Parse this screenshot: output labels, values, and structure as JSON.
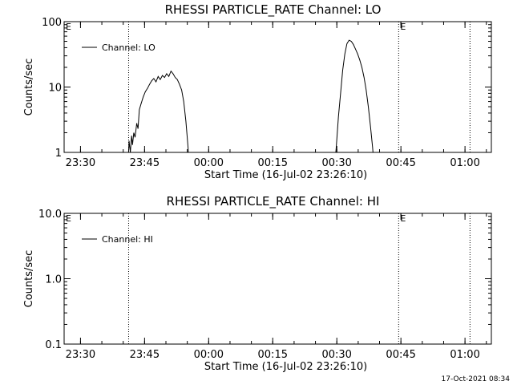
{
  "chart_data": [
    {
      "type": "line",
      "title": "RHESSI PARTICLE_RATE Channel: LO",
      "xlabel": "Start Time (16-Jul-02 23:26:10)",
      "ylabel": "Counts/sec",
      "y_scale": "log",
      "ylim": [
        1,
        100
      ],
      "y_ticks": [
        "1",
        "10",
        "100"
      ],
      "x_tick_labels": [
        "23:30",
        "23:45",
        "00:00",
        "00:15",
        "00:30",
        "00:45",
        "01:00"
      ],
      "x_ticks_min": [
        3.83,
        18.83,
        33.83,
        48.83,
        63.83,
        78.83,
        93.83
      ],
      "xlim_min": [
        0,
        100
      ],
      "legend": {
        "label": "Channel: LO",
        "position": "top-left"
      },
      "grid": false,
      "markers": [
        {
          "label": "E",
          "x_min": 0,
          "line": "solid"
        },
        {
          "label": "",
          "x_min": 15.1,
          "line": "dotted"
        },
        {
          "label": "E",
          "x_min": 78.3,
          "line": "dotted"
        },
        {
          "label": "",
          "x_min": 95.0,
          "line": "dotted"
        }
      ],
      "series": [
        {
          "name": "Channel: LO",
          "segments": [
            [
              [
                15.0,
                0.7
              ],
              [
                15.2,
                1.5
              ],
              [
                15.5,
                1.0
              ],
              [
                15.8,
                1.8
              ],
              [
                16.0,
                1.3
              ],
              [
                16.3,
                2.0
              ],
              [
                16.6,
                1.7
              ],
              [
                17.0,
                2.8
              ],
              [
                17.3,
                2.3
              ],
              [
                17.6,
                4.5
              ],
              [
                18.0,
                5.5
              ],
              [
                18.5,
                7.0
              ],
              [
                19.0,
                8.5
              ],
              [
                19.5,
                9.5
              ],
              [
                20.0,
                11.0
              ],
              [
                20.5,
                12.5
              ],
              [
                21.0,
                13.5
              ],
              [
                21.5,
                12.0
              ],
              [
                22.0,
                14.5
              ],
              [
                22.5,
                13.0
              ],
              [
                23.0,
                15.0
              ],
              [
                23.5,
                14.0
              ],
              [
                24.0,
                16.0
              ],
              [
                24.5,
                14.5
              ],
              [
                25.0,
                17.5
              ],
              [
                25.5,
                16.0
              ],
              [
                26.0,
                14.0
              ],
              [
                26.5,
                13.0
              ],
              [
                27.0,
                11.0
              ],
              [
                27.5,
                9.0
              ],
              [
                28.0,
                6.0
              ],
              [
                28.5,
                3.0
              ],
              [
                29.0,
                1.2
              ],
              [
                29.2,
                0.7
              ]
            ],
            [
              [
                63.4,
                0.7
              ],
              [
                63.7,
                1.2
              ],
              [
                64.2,
                3.5
              ],
              [
                64.7,
                8.0
              ],
              [
                65.2,
                18.0
              ],
              [
                65.7,
                32.0
              ],
              [
                66.2,
                46.0
              ],
              [
                66.7,
                52.0
              ],
              [
                67.2,
                50.0
              ],
              [
                67.7,
                45.0
              ],
              [
                68.2,
                38.0
              ],
              [
                68.7,
                32.0
              ],
              [
                69.2,
                26.0
              ],
              [
                69.7,
                20.0
              ],
              [
                70.2,
                14.0
              ],
              [
                70.7,
                9.0
              ],
              [
                71.2,
                5.0
              ],
              [
                71.7,
                2.5
              ],
              [
                72.2,
                1.2
              ],
              [
                72.5,
                0.7
              ]
            ]
          ]
        }
      ]
    },
    {
      "type": "line",
      "title": "RHESSI PARTICLE_RATE Channel: HI",
      "xlabel": "Start Time (16-Jul-02 23:26:10)",
      "ylabel": "Counts/sec",
      "y_scale": "log",
      "ylim": [
        0.1,
        10.0
      ],
      "y_ticks": [
        "0.1",
        "1.0",
        "10.0"
      ],
      "x_tick_labels": [
        "23:30",
        "23:45",
        "00:00",
        "00:15",
        "00:30",
        "00:45",
        "01:00"
      ],
      "x_ticks_min": [
        3.83,
        18.83,
        33.83,
        48.83,
        63.83,
        78.83,
        93.83
      ],
      "xlim_min": [
        0,
        100
      ],
      "legend": {
        "label": "Channel: HI",
        "position": "top-left"
      },
      "grid": false,
      "markers": [
        {
          "label": "E",
          "x_min": 0,
          "line": "solid"
        },
        {
          "label": "",
          "x_min": 15.1,
          "line": "dotted"
        },
        {
          "label": "E",
          "x_min": 78.3,
          "line": "dotted"
        },
        {
          "label": "",
          "x_min": 95.0,
          "line": "dotted"
        }
      ],
      "series": [
        {
          "name": "Channel: HI",
          "segments": []
        }
      ]
    }
  ],
  "timestamp": "17-Oct-2021 08:34"
}
